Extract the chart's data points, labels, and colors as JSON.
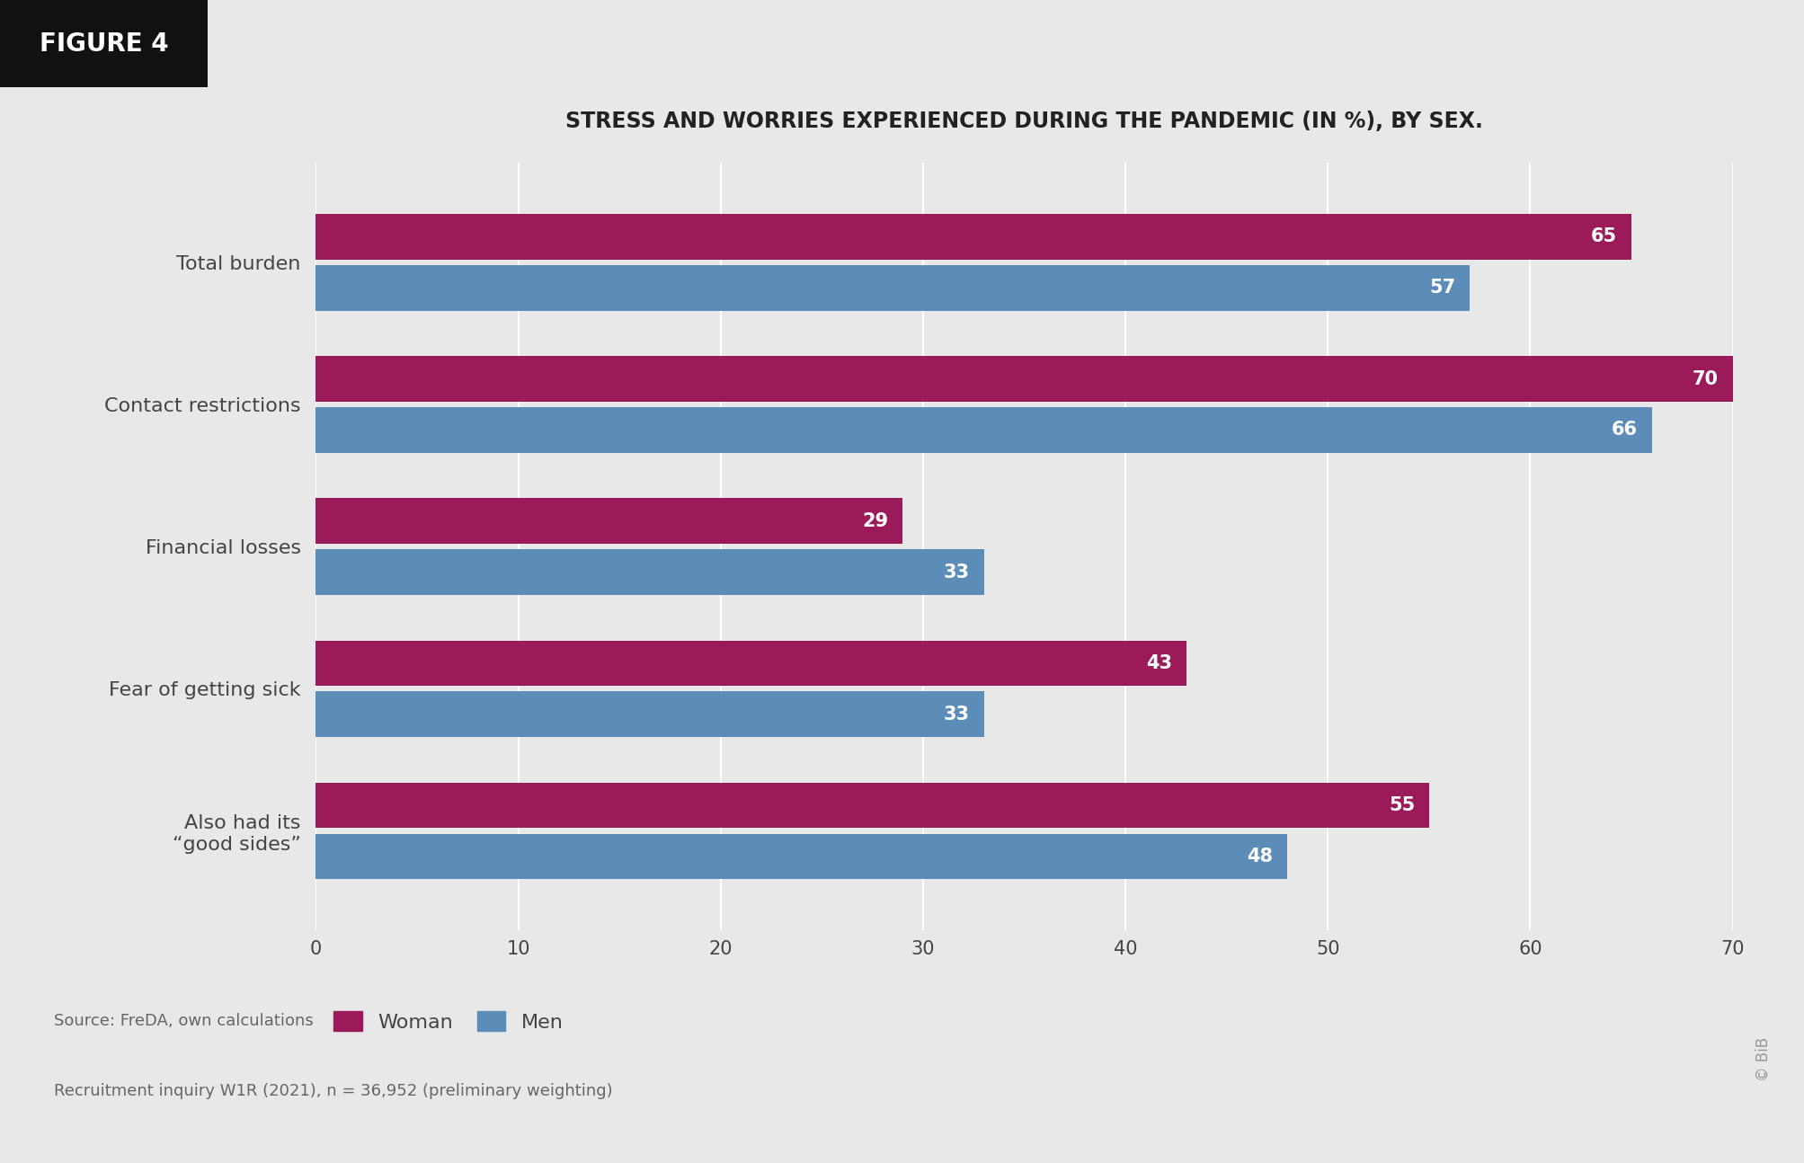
{
  "title": "STRESS AND WORRIES EXPERIENCED DURING THE PANDEMIC (IN %), BY SEX.",
  "categories": [
    "Also had its\n“good sides”",
    "Fear of getting sick",
    "Financial losses",
    "Contact restrictions",
    "Total burden"
  ],
  "women_values": [
    55,
    43,
    29,
    70,
    65
  ],
  "men_values": [
    48,
    33,
    33,
    66,
    57
  ],
  "woman_color": "#9B1B5A",
  "men_color": "#5B8DB8",
  "background_color": "#E8E8E8",
  "plot_bg_color": "#E8E8E8",
  "title_color": "#222222",
  "label_color": "#444444",
  "xlim": [
    0,
    70
  ],
  "xticks": [
    0,
    10,
    20,
    30,
    40,
    50,
    60,
    70
  ],
  "figure_label": "FIGURE 4",
  "source_line1": "Source: FreDA, own calculations",
  "source_line2": "Recruitment inquiry W1R (2021), n = 36,952 (preliminary weighting)",
  "legend_woman": "Woman",
  "legend_men": "Men",
  "bar_height": 0.32,
  "bar_gap": 0.36
}
